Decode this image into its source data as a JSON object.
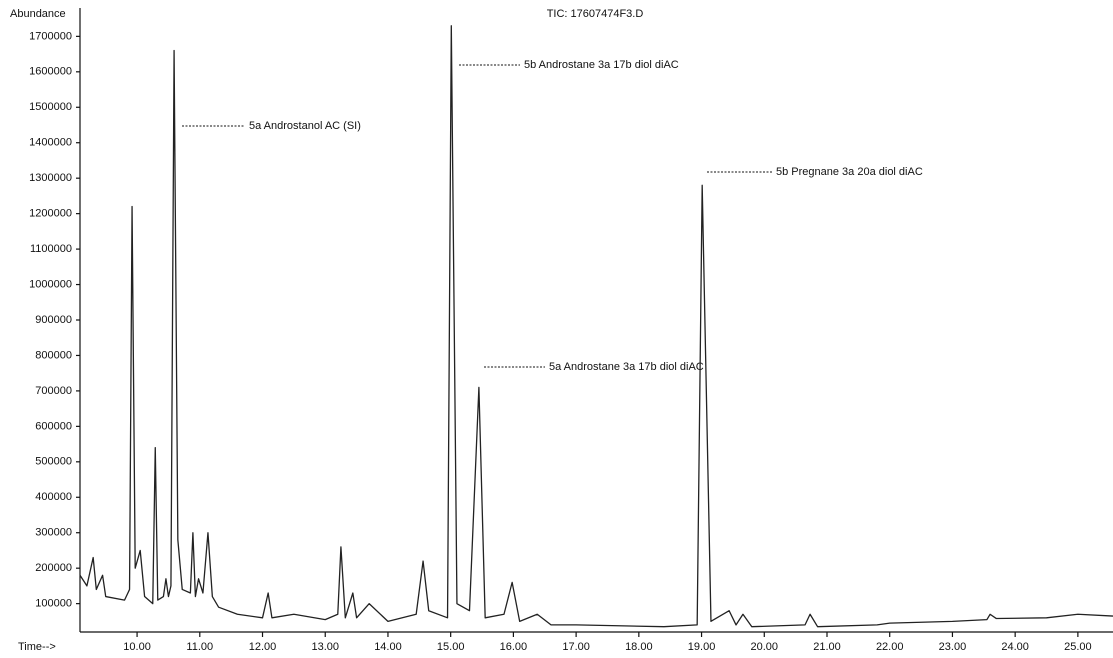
{
  "chart_data": {
    "type": "line",
    "title": "TIC: 17607474F3.D",
    "y_label": "Abundance",
    "x_label": "Time-->",
    "annotations": [
      "5a Androstanol AC (SI)",
      "5b Androstane 3a 17b diol diAC",
      "5a Androstane 3a 17b diol diAC",
      "5b Pregnane 3a 20a diol diAC"
    ],
    "x": [
      9.09,
      9.2,
      9.3,
      9.35,
      9.45,
      9.5,
      9.8,
      9.88,
      9.92,
      9.97,
      10.05,
      10.12,
      10.25,
      10.29,
      10.33,
      10.42,
      10.46,
      10.5,
      10.54,
      10.59,
      10.65,
      10.72,
      10.85,
      10.89,
      10.93,
      10.98,
      11.05,
      11.13,
      11.2,
      11.3,
      11.6,
      12.0,
      12.09,
      12.15,
      12.5,
      13.0,
      13.2,
      13.25,
      13.32,
      13.44,
      13.5,
      13.7,
      14.0,
      14.45,
      14.56,
      14.65,
      14.95,
      15.01,
      15.1,
      15.3,
      15.45,
      15.55,
      15.85,
      15.98,
      16.1,
      16.38,
      16.6,
      17.0,
      18.4,
      18.93,
      19.01,
      19.15,
      19.44,
      19.55,
      19.66,
      19.8,
      20.65,
      20.73,
      20.85,
      21.8,
      22.0,
      23.0,
      23.55,
      23.6,
      23.7,
      24.5,
      25.0,
      25.56
    ],
    "values": [
      180000,
      150000,
      230000,
      140000,
      180000,
      120000,
      110000,
      140000,
      1220000,
      200000,
      250000,
      120000,
      100000,
      540000,
      110000,
      120000,
      170000,
      120000,
      150000,
      1660000,
      280000,
      140000,
      130000,
      300000,
      120000,
      170000,
      130000,
      300000,
      120000,
      90000,
      70000,
      60000,
      130000,
      60000,
      70000,
      55000,
      70000,
      260000,
      60000,
      130000,
      60000,
      100000,
      50000,
      70000,
      220000,
      80000,
      60000,
      1730000,
      100000,
      80000,
      710000,
      60000,
      70000,
      160000,
      50000,
      70000,
      40000,
      40000,
      35000,
      40000,
      1280000,
      50000,
      80000,
      40000,
      70000,
      35000,
      40000,
      70000,
      35000,
      40000,
      45000,
      50000,
      55000,
      70000,
      58000,
      60000,
      70000,
      65000
    ],
    "color": "#222222",
    "xlim": [
      9.09,
      25.56
    ],
    "xticks": [
      {
        "value": 10,
        "label": "10.00"
      },
      {
        "value": 11,
        "label": "11.00"
      },
      {
        "value": 12,
        "label": "12.00"
      },
      {
        "value": 13,
        "label": "13.00"
      },
      {
        "value": 14,
        "label": "14.00"
      },
      {
        "value": 15,
        "label": "15.00"
      },
      {
        "value": 16,
        "label": "16.00"
      },
      {
        "value": 17,
        "label": "17.00"
      },
      {
        "value": 18,
        "label": "18.00"
      },
      {
        "value": 19,
        "label": "19.00"
      },
      {
        "value": 20,
        "label": "20.00"
      },
      {
        "value": 21,
        "label": "21.00"
      },
      {
        "value": 22,
        "label": "22.00"
      },
      {
        "value": 23,
        "label": "23.00"
      },
      {
        "value": 24,
        "label": "24.00"
      },
      {
        "value": 25,
        "label": "25.00"
      }
    ],
    "ylim": [
      20000,
      1780000
    ],
    "yticks": [
      100000,
      200000,
      300000,
      400000,
      500000,
      600000,
      700000,
      800000,
      900000,
      1000000,
      1100000,
      1200000,
      1300000,
      1400000,
      1500000,
      1600000,
      1700000
    ]
  }
}
